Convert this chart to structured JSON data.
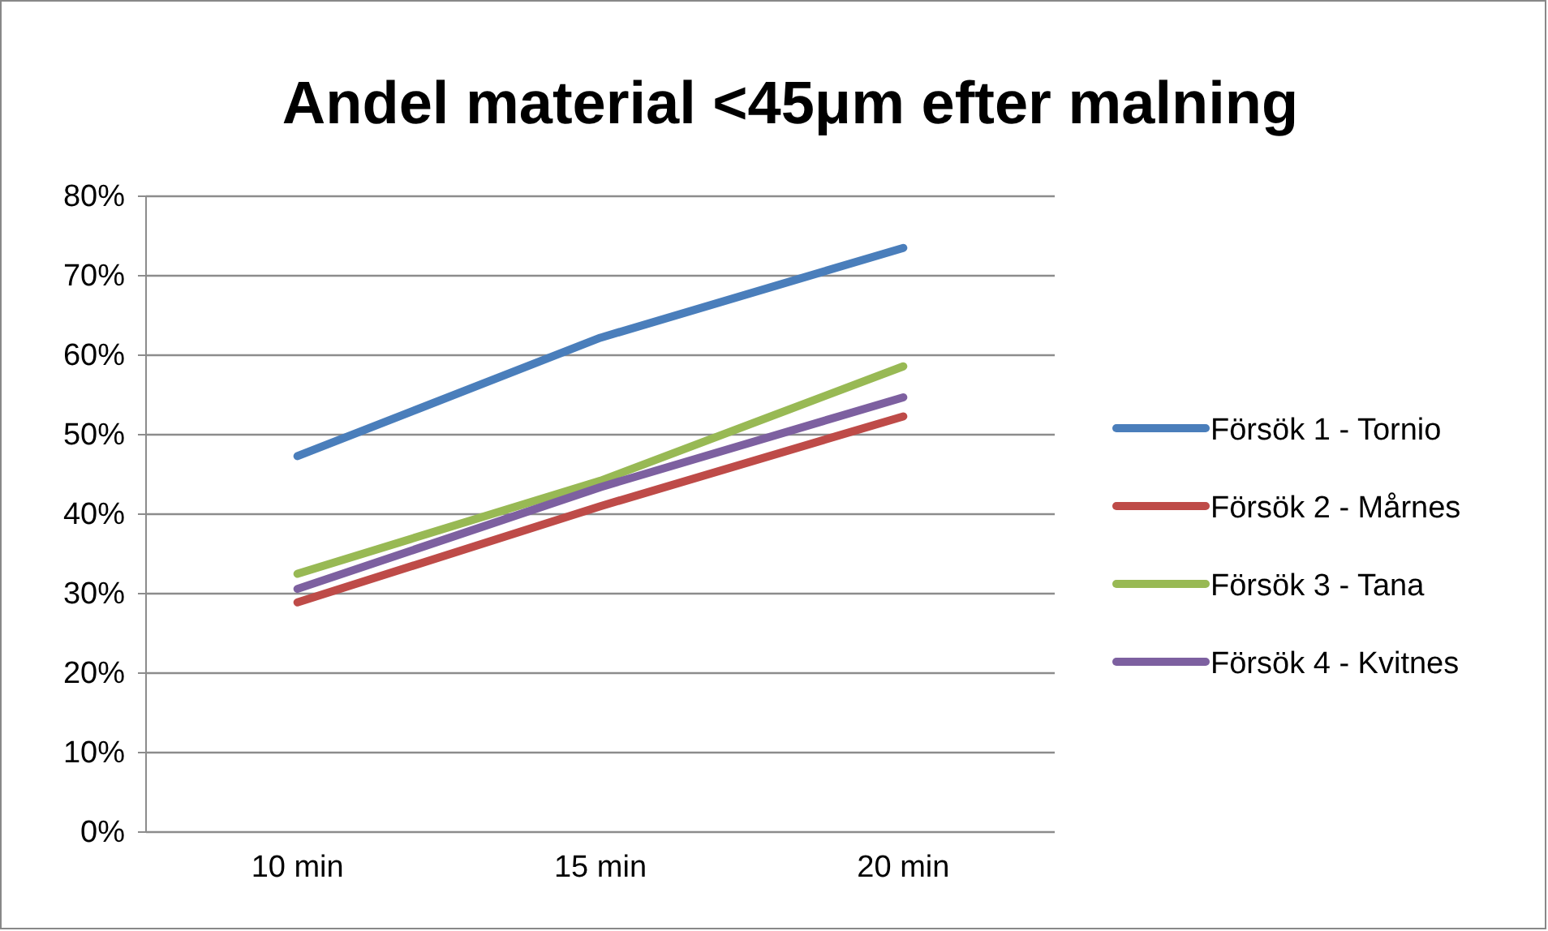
{
  "chart_data": {
    "type": "line",
    "title": "Andel material <45μm efter malning",
    "categories": [
      "10 min",
      "15 min",
      "20 min"
    ],
    "series": [
      {
        "name": "Försök 1 - Tornio",
        "color": "#4a7ebb",
        "values": [
          47.3,
          62.2,
          73.5
        ]
      },
      {
        "name": "Försök 2 - Mårnes",
        "color": "#be4b48",
        "values": [
          28.9,
          41.0,
          52.3
        ]
      },
      {
        "name": "Försök 3 - Tana",
        "color": "#98b954",
        "values": [
          32.5,
          44.2,
          58.6
        ]
      },
      {
        "name": "Försök 4 - Kvitnes",
        "color": "#7d60a0",
        "values": [
          30.6,
          43.4,
          54.7
        ]
      }
    ],
    "ylim": [
      0,
      80
    ],
    "yticks": [
      {
        "value": 0,
        "label": "0%"
      },
      {
        "value": 10,
        "label": "10%"
      },
      {
        "value": 20,
        "label": "20%"
      },
      {
        "value": 30,
        "label": "30%"
      },
      {
        "value": 40,
        "label": "40%"
      },
      {
        "value": 50,
        "label": "50%"
      },
      {
        "value": 60,
        "label": "60%"
      },
      {
        "value": 70,
        "label": "70%"
      },
      {
        "value": 80,
        "label": "80%"
      }
    ],
    "grid": "y",
    "legend": "right",
    "marker": "none",
    "line_style": "solid"
  }
}
